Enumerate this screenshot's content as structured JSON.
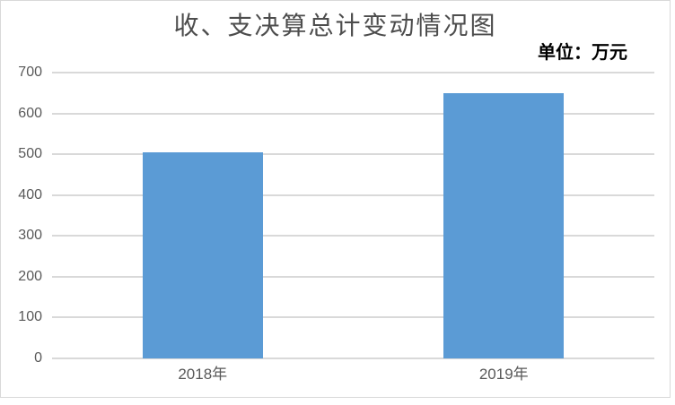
{
  "colors": {
    "bar": "#5b9bd5",
    "gridline": "#d9d9d9",
    "frame_border": "#d9d9d9",
    "axis_text": "#595959",
    "title_text": "#4d4d4d",
    "unit_text": "#000000"
  },
  "chart_data": {
    "type": "bar",
    "title": "收、支决算总计变动情况图",
    "unit_label": "单位：万元",
    "categories": [
      "2018年",
      "2019年"
    ],
    "values": [
      505,
      650
    ],
    "xlabel": "",
    "ylabel": "",
    "ylim": [
      0,
      700
    ],
    "yticks": [
      0,
      100,
      200,
      300,
      400,
      500,
      600,
      700
    ],
    "grid": true,
    "legend": "none",
    "bar_color": "#5b9bd5"
  }
}
